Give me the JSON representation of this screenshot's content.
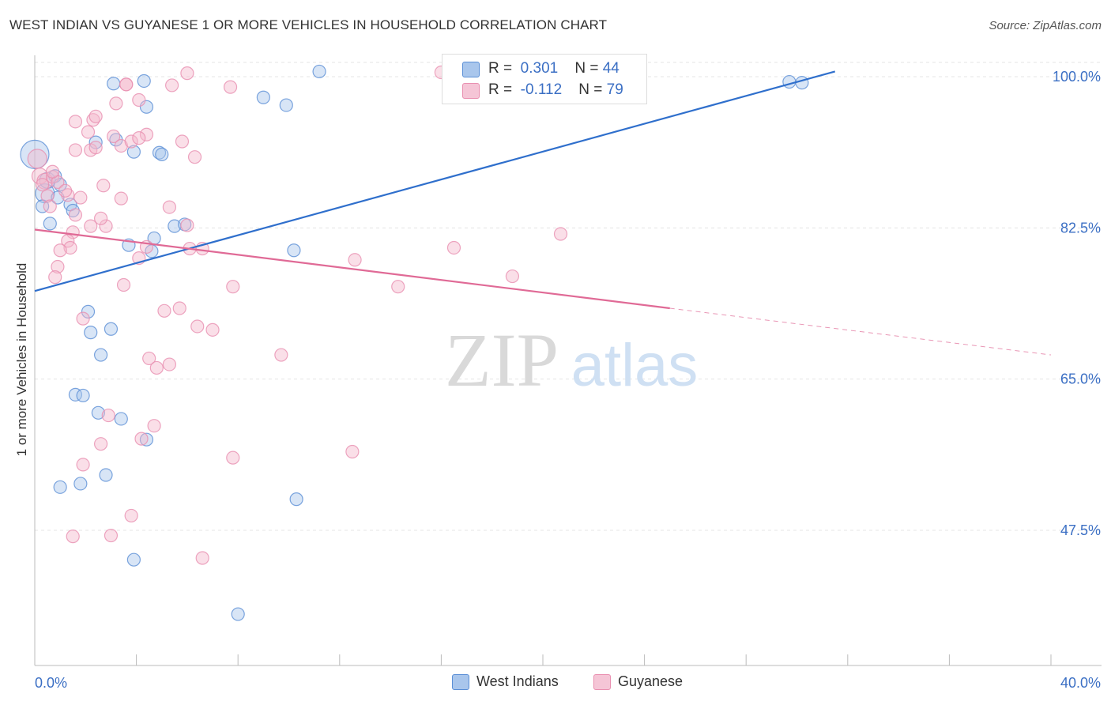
{
  "title": "WEST INDIAN VS GUYANESE 1 OR MORE VEHICLES IN HOUSEHOLD CORRELATION CHART",
  "source": "Source: ZipAtlas.com",
  "watermark": {
    "zip": "ZIP",
    "atlas": "atlas"
  },
  "stats": {
    "west_indian": {
      "r_label": "R =",
      "r_value": "0.301",
      "n_label": "N =",
      "n_value": "44"
    },
    "guyanese": {
      "r_label": "R =",
      "r_value": "-0.112",
      "n_label": "N =",
      "n_value": "79"
    }
  },
  "colors": {
    "blue_fill": "#a9c6ec",
    "blue_stroke": "#5b8fd6",
    "blue_line": "#2f6fcc",
    "pink_fill": "#f5b7cc",
    "pink_stroke": "#e98fb0",
    "pink_line": "#e06a96",
    "tick_label": "#3b6fc4",
    "grid": "#e4e4e4"
  },
  "chart_data": {
    "type": "scatter",
    "title": "WEST INDIAN VS GUYANESE 1 OR MORE VEHICLES IN HOUSEHOLD CORRELATION CHART",
    "xlabel": "",
    "ylabel": "1 or more Vehicles in Household",
    "xlim": [
      0,
      40
    ],
    "ylim": [
      32,
      102
    ],
    "x_tick_labels": [
      "0.0%",
      "40.0%"
    ],
    "y_ticks": [
      47.5,
      65.0,
      82.5,
      100.0
    ],
    "y_tick_labels": [
      "47.5%",
      "65.0%",
      "82.5%",
      "100.0%"
    ],
    "grid": true,
    "legend_position": "bottom",
    "series": [
      {
        "name": "West Indians",
        "color": "#a9c6ec",
        "points": [
          [
            0.0,
            91.0,
            18
          ],
          [
            0.4,
            86.5,
            12
          ],
          [
            0.5,
            88.0,
            10
          ],
          [
            0.8,
            88.5,
            8
          ],
          [
            1.0,
            87.5,
            8
          ],
          [
            0.6,
            83.0,
            8
          ],
          [
            1.4,
            85.2,
            8
          ],
          [
            3.1,
            99.2,
            8
          ],
          [
            4.3,
            99.5,
            8
          ],
          [
            11.2,
            100.6,
            8
          ],
          [
            4.4,
            96.5,
            8
          ],
          [
            9.0,
            97.6,
            8
          ],
          [
            9.9,
            96.7,
            8
          ],
          [
            3.2,
            92.7,
            8
          ],
          [
            2.4,
            92.4,
            8
          ],
          [
            3.9,
            91.3,
            8
          ],
          [
            4.9,
            91.2,
            8
          ],
          [
            5.0,
            91.0,
            8
          ],
          [
            29.7,
            99.4,
            8
          ],
          [
            30.2,
            99.3,
            8
          ],
          [
            5.5,
            82.7,
            8
          ],
          [
            5.9,
            82.9,
            8
          ],
          [
            4.7,
            81.3,
            8
          ],
          [
            3.7,
            80.5,
            8
          ],
          [
            4.6,
            79.8,
            8
          ],
          [
            10.2,
            79.9,
            8
          ],
          [
            2.1,
            72.8,
            8
          ],
          [
            2.2,
            70.4,
            8
          ],
          [
            3.0,
            70.8,
            8
          ],
          [
            2.6,
            67.8,
            8
          ],
          [
            1.6,
            63.2,
            8
          ],
          [
            1.9,
            63.1,
            8
          ],
          [
            2.5,
            61.1,
            8
          ],
          [
            3.4,
            60.4,
            8
          ],
          [
            4.4,
            58.0,
            8
          ],
          [
            1.0,
            52.5,
            8
          ],
          [
            1.8,
            52.9,
            8
          ],
          [
            2.8,
            53.9,
            8
          ],
          [
            10.3,
            51.1,
            8
          ],
          [
            3.9,
            44.1,
            8
          ],
          [
            8.0,
            37.8,
            8
          ],
          [
            0.3,
            85.0,
            8
          ],
          [
            0.9,
            86.0,
            8
          ],
          [
            1.5,
            84.5,
            8
          ]
        ]
      },
      {
        "name": "Guyanese",
        "color": "#f5b7cc",
        "points": [
          [
            0.1,
            90.5,
            12
          ],
          [
            0.2,
            88.5,
            10
          ],
          [
            0.4,
            87.9,
            10
          ],
          [
            0.5,
            86.2,
            8
          ],
          [
            0.7,
            88.4,
            8
          ],
          [
            0.9,
            87.8,
            8
          ],
          [
            1.3,
            86.3,
            8
          ],
          [
            1.8,
            86.0,
            8
          ],
          [
            0.6,
            85.0,
            8
          ],
          [
            1.6,
            84.0,
            8
          ],
          [
            1.5,
            82.0,
            8
          ],
          [
            2.2,
            82.7,
            8
          ],
          [
            2.8,
            82.7,
            8
          ],
          [
            1.3,
            81.0,
            8
          ],
          [
            1.4,
            80.2,
            8
          ],
          [
            1.0,
            79.9,
            8
          ],
          [
            0.9,
            78.0,
            8
          ],
          [
            0.8,
            76.8,
            8
          ],
          [
            2.6,
            83.6,
            8
          ],
          [
            2.7,
            87.4,
            8
          ],
          [
            3.4,
            85.9,
            8
          ],
          [
            5.3,
            84.9,
            8
          ],
          [
            6.0,
            82.8,
            8
          ],
          [
            4.1,
            79.0,
            8
          ],
          [
            4.4,
            80.3,
            8
          ],
          [
            6.1,
            80.1,
            8
          ],
          [
            6.6,
            80.1,
            8
          ],
          [
            3.5,
            75.9,
            8
          ],
          [
            7.8,
            75.7,
            8
          ],
          [
            12.6,
            78.8,
            8
          ],
          [
            14.3,
            75.7,
            8
          ],
          [
            16.5,
            80.2,
            8
          ],
          [
            18.8,
            76.9,
            8
          ],
          [
            20.7,
            81.8,
            8
          ],
          [
            5.1,
            72.9,
            8
          ],
          [
            5.7,
            73.2,
            8
          ],
          [
            6.4,
            71.1,
            8
          ],
          [
            7.0,
            70.7,
            8
          ],
          [
            4.5,
            67.4,
            8
          ],
          [
            4.8,
            66.3,
            8
          ],
          [
            5.3,
            66.7,
            8
          ],
          [
            9.7,
            67.8,
            8
          ],
          [
            1.9,
            72.0,
            8
          ],
          [
            2.9,
            60.8,
            8
          ],
          [
            4.7,
            59.6,
            8
          ],
          [
            4.2,
            58.1,
            8
          ],
          [
            2.6,
            57.5,
            8
          ],
          [
            7.8,
            55.9,
            8
          ],
          [
            12.5,
            56.6,
            8
          ],
          [
            1.9,
            55.1,
            8
          ],
          [
            3.8,
            49.2,
            8
          ],
          [
            1.5,
            46.8,
            8
          ],
          [
            3.0,
            46.9,
            8
          ],
          [
            6.6,
            44.3,
            8
          ],
          [
            2.2,
            91.5,
            8
          ],
          [
            1.6,
            91.5,
            8
          ],
          [
            2.4,
            91.8,
            8
          ],
          [
            3.1,
            93.1,
            8
          ],
          [
            3.4,
            92.0,
            8
          ],
          [
            3.8,
            92.5,
            8
          ],
          [
            4.4,
            93.3,
            8
          ],
          [
            4.1,
            92.9,
            8
          ],
          [
            5.8,
            92.5,
            8
          ],
          [
            6.3,
            90.7,
            8
          ],
          [
            2.1,
            93.6,
            8
          ],
          [
            1.6,
            94.8,
            8
          ],
          [
            2.3,
            95.0,
            8
          ],
          [
            2.4,
            95.4,
            8
          ],
          [
            3.2,
            96.9,
            8
          ],
          [
            4.1,
            97.3,
            8
          ],
          [
            3.6,
            99.1,
            8
          ],
          [
            3.6,
            99.1,
            8
          ],
          [
            5.4,
            99.0,
            8
          ],
          [
            7.7,
            98.8,
            8
          ],
          [
            6.0,
            100.4,
            8
          ],
          [
            16.0,
            100.5,
            8
          ],
          [
            0.3,
            87.5,
            8
          ],
          [
            1.2,
            86.8,
            8
          ],
          [
            0.7,
            89.0,
            8
          ]
        ]
      }
    ],
    "trendlines": [
      {
        "series": "West Indians",
        "from": [
          0,
          75.2
        ],
        "to": [
          31.5,
          100.6
        ],
        "style": "solid"
      },
      {
        "series": "Guyanese",
        "from": [
          0,
          82.3
        ],
        "to": [
          25.0,
          73.2
        ],
        "style": "solid"
      },
      {
        "series": "Guyanese",
        "from": [
          25.0,
          73.2
        ],
        "to": [
          40.0,
          67.8
        ],
        "style": "dashed"
      }
    ]
  },
  "legend": {
    "west_indians": "West Indians",
    "guyanese": "Guyanese"
  }
}
